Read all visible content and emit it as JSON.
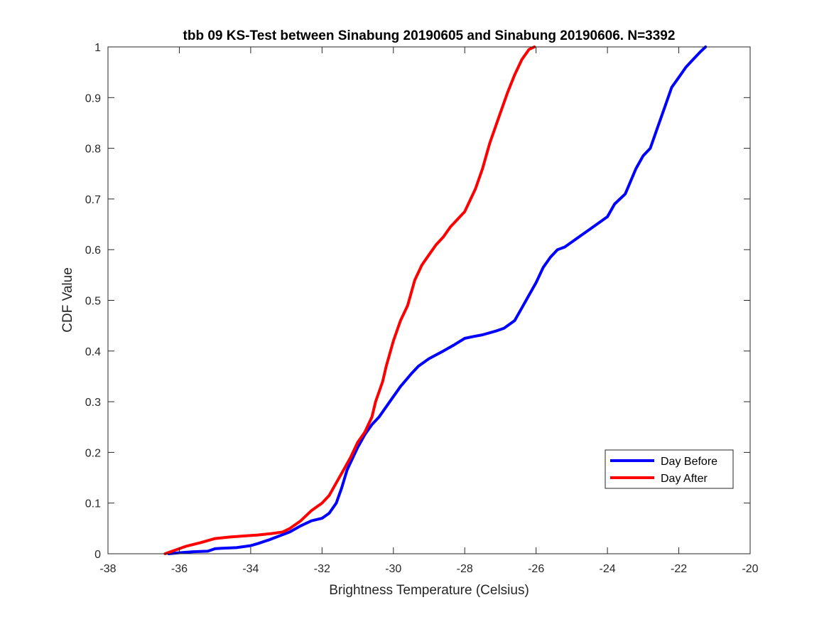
{
  "chart_data": {
    "type": "line",
    "title": "tbb 09 KS-Test between Sinabung 20190605 and Sinabung 20190606. N=3392",
    "xlabel": "Brightness Temperature (Celsius)",
    "ylabel": "CDF Value",
    "xlim": [
      -38,
      -20
    ],
    "ylim": [
      0,
      1
    ],
    "xticks": [
      -38,
      -36,
      -34,
      -32,
      -30,
      -28,
      -26,
      -24,
      -22,
      -20
    ],
    "yticks": [
      0,
      0.1,
      0.2,
      0.3,
      0.4,
      0.5,
      0.6,
      0.7,
      0.8,
      0.9,
      1
    ],
    "ytick_labels": [
      "0",
      "0.1",
      "0.2",
      "0.3",
      "0.4",
      "0.5",
      "0.6",
      "0.7",
      "0.8",
      "0.9",
      "1"
    ],
    "grid": false,
    "legend_position": "lower-right",
    "series": [
      {
        "name": "Day Before",
        "color": "#0000ff",
        "x": [
          -36.3,
          -36.0,
          -35.8,
          -35.6,
          -35.2,
          -35.0,
          -34.8,
          -34.4,
          -34.0,
          -33.8,
          -33.5,
          -33.2,
          -32.9,
          -32.6,
          -32.3,
          -32.0,
          -31.8,
          -31.6,
          -31.45,
          -31.3,
          -31.2,
          -31.1,
          -31.0,
          -30.8,
          -30.6,
          -30.4,
          -30.2,
          -29.8,
          -29.5,
          -29.3,
          -29.0,
          -28.6,
          -28.3,
          -28.0,
          -27.8,
          -27.5,
          -27.1,
          -26.9,
          -26.6,
          -26.4,
          -26.2,
          -26.0,
          -25.8,
          -25.6,
          -25.4,
          -25.2,
          -25.0,
          -24.8,
          -24.5,
          -24.2,
          -24.0,
          -23.8,
          -23.5,
          -23.2,
          -23.0,
          -22.8,
          -22.6,
          -22.4,
          -22.2,
          -22.0,
          -21.8,
          -21.6,
          -21.4,
          -21.25
        ],
        "values": [
          0.0,
          0.002,
          0.003,
          0.004,
          0.005,
          0.01,
          0.011,
          0.012,
          0.016,
          0.02,
          0.027,
          0.035,
          0.043,
          0.055,
          0.065,
          0.07,
          0.08,
          0.1,
          0.13,
          0.165,
          0.18,
          0.195,
          0.21,
          0.235,
          0.255,
          0.27,
          0.29,
          0.33,
          0.355,
          0.37,
          0.385,
          0.4,
          0.412,
          0.425,
          0.428,
          0.432,
          0.44,
          0.445,
          0.46,
          0.485,
          0.51,
          0.535,
          0.565,
          0.585,
          0.6,
          0.605,
          0.615,
          0.625,
          0.64,
          0.655,
          0.665,
          0.69,
          0.71,
          0.76,
          0.785,
          0.8,
          0.84,
          0.88,
          0.92,
          0.94,
          0.96,
          0.975,
          0.99,
          1.0
        ]
      },
      {
        "name": "Day After",
        "color": "#ff0000",
        "x": [
          -36.4,
          -36.2,
          -35.8,
          -35.4,
          -35.0,
          -34.6,
          -34.2,
          -33.8,
          -33.4,
          -33.1,
          -32.9,
          -32.6,
          -32.3,
          -32.0,
          -31.8,
          -31.6,
          -31.4,
          -31.2,
          -31.0,
          -30.8,
          -30.6,
          -30.5,
          -30.3,
          -30.2,
          -30.0,
          -29.8,
          -29.6,
          -29.4,
          -29.2,
          -29.0,
          -28.8,
          -28.6,
          -28.4,
          -28.0,
          -27.7,
          -27.5,
          -27.3,
          -27.0,
          -26.8,
          -26.6,
          -26.4,
          -26.2,
          -26.05
        ],
        "values": [
          0.0,
          0.005,
          0.015,
          0.022,
          0.03,
          0.033,
          0.035,
          0.037,
          0.04,
          0.043,
          0.05,
          0.065,
          0.085,
          0.1,
          0.115,
          0.14,
          0.165,
          0.19,
          0.22,
          0.24,
          0.27,
          0.3,
          0.34,
          0.37,
          0.42,
          0.46,
          0.49,
          0.54,
          0.57,
          0.59,
          0.61,
          0.625,
          0.645,
          0.675,
          0.72,
          0.76,
          0.81,
          0.87,
          0.91,
          0.945,
          0.975,
          0.995,
          1.0
        ]
      }
    ]
  }
}
